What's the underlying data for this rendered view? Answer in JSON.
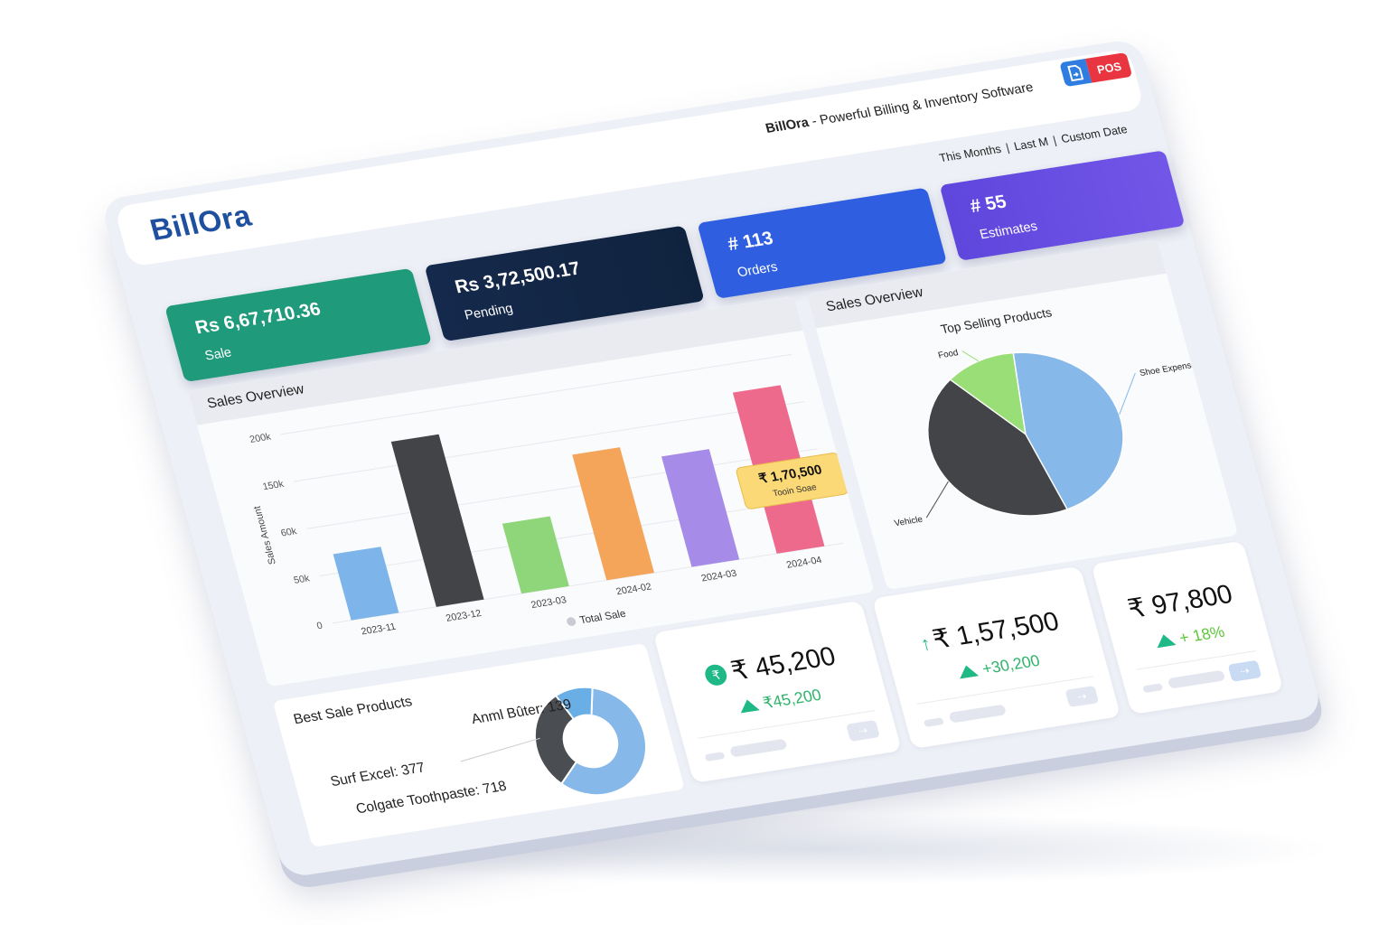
{
  "app": {
    "logo": "BillOra",
    "brand": "BillOra",
    "tagline": " - Powerful Billing & Inventory Software",
    "pos_label": "POS",
    "doc_icon": "document-icon"
  },
  "filters": [
    "This Months",
    "Last M",
    "Custom Date"
  ],
  "stats": [
    {
      "value": "Rs 6,67,710.36",
      "label": "Sale",
      "color": "#1f9a7a"
    },
    {
      "value": "Rs 3,72,500.17",
      "label": "Pending",
      "color": "#14294b"
    },
    {
      "value": "# 113",
      "label": "Orders",
      "color": "#2f5fe0"
    },
    {
      "value": "# 55",
      "label": "Estimates",
      "color": "#6a4ee2"
    }
  ],
  "sales_panel": {
    "title": "Sales Overview"
  },
  "pie_panel": {
    "title": "Sales Overview"
  },
  "best_panel": {
    "title": "Best Sale Products"
  },
  "tooltip": {
    "value": "₹ 1,70,500",
    "label": "Tooin Soae"
  },
  "chart_data": [
    {
      "type": "bar",
      "ylabel": "Sales Amount",
      "categories": [
        "2023-11",
        "2023-12",
        "2023-03",
        "2024-02",
        "2024-03",
        "2024-04"
      ],
      "values": [
        70000,
        175000,
        74000,
        133000,
        117000,
        170500
      ],
      "colors": [
        "#7db5ea",
        "#434448",
        "#8fd67a",
        "#f4a55a",
        "#a78be8",
        "#ee6a8c"
      ],
      "yticks": [
        "0",
        "50k",
        "60k",
        "150k",
        "200k"
      ],
      "ylim": [
        0,
        200000
      ],
      "grid": true,
      "legend": {
        "label": "Total Sale",
        "position": "bottom"
      }
    },
    {
      "type": "pie",
      "title": "Top Selling Products",
      "labels": [
        "Shoe Expenses",
        "Vehicle",
        "Food"
      ],
      "values": [
        45,
        43,
        12
      ],
      "colors": [
        "#86b8ea",
        "#434448",
        "#9ade78"
      ]
    },
    {
      "type": "pie",
      "donut": true,
      "labels": [
        "Colgate Toothpaste",
        "Surf Excel",
        "Anml Bûter"
      ],
      "values": [
        718,
        377,
        139
      ],
      "display": [
        "Colgate Toothpaste: 718",
        "Surf Excel: 377",
        "Anml Bûter: 139"
      ],
      "colors": [
        "#86b8ea",
        "#4a4d52",
        "#6aaee6"
      ]
    }
  ],
  "summary_cards": [
    {
      "amount": "₹ 45,200",
      "delta": "₹45,200",
      "icon": "rupee-circle-icon"
    },
    {
      "amount": "₹ 1,57,500",
      "delta": "+30,200",
      "icon": "arrow-up-icon"
    },
    {
      "amount": "₹ 97,800",
      "delta": "+ 18%",
      "icon": ""
    }
  ]
}
